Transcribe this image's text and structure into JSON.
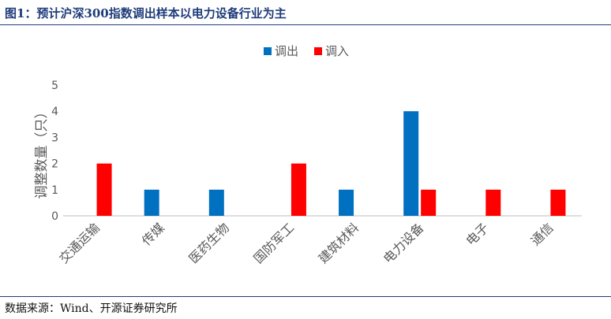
{
  "figure": {
    "title": "图1：预计沪深300指数调出样本以电力设备行业为主",
    "source": "数据来源：Wind、开源证券研究所"
  },
  "colors": {
    "out": "#0070c0",
    "in": "#ff0000",
    "axis": "#bfbfbf",
    "text": "#595959",
    "rule": "#1f3c7a"
  },
  "chart_data": {
    "type": "bar",
    "title": "",
    "xlabel": "",
    "ylabel": "调整数量（只）",
    "ylim": [
      0,
      5
    ],
    "yticks": [
      0,
      1,
      2,
      3,
      4,
      5
    ],
    "grid": false,
    "legend": "top-center",
    "categories": [
      "交通运输",
      "传媒",
      "医药生物",
      "国防军工",
      "建筑材料",
      "电力设备",
      "电子",
      "通信"
    ],
    "series": [
      {
        "name": "调出",
        "color": "#0070c0",
        "values": [
          0,
          1,
          1,
          0,
          1,
          4,
          0,
          0
        ]
      },
      {
        "name": "调入",
        "color": "#ff0000",
        "values": [
          2,
          0,
          0,
          2,
          0,
          1,
          1,
          1
        ]
      }
    ]
  }
}
